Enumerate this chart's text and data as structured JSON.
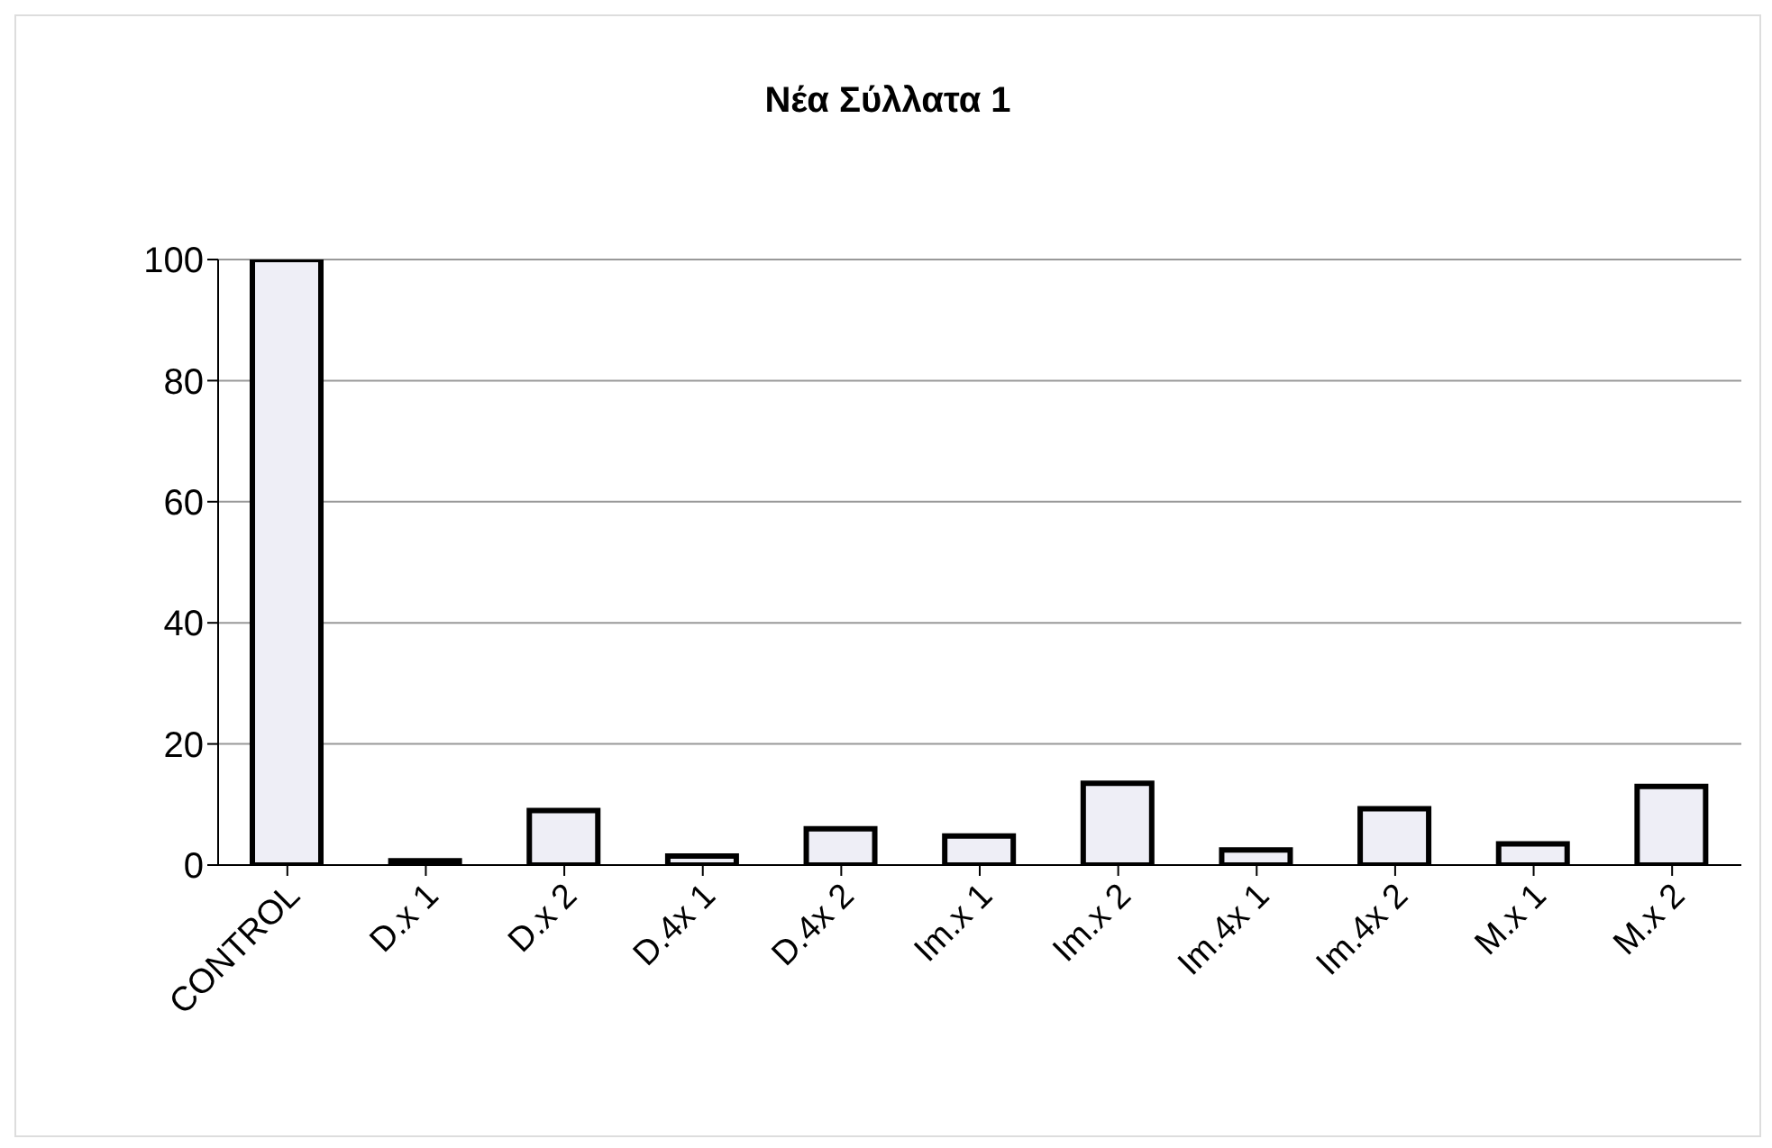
{
  "chart_data": {
    "type": "bar",
    "title": "Νέα Σύλλατα 1",
    "categories": [
      "CONTROL",
      "D.x 1",
      "D.x 2",
      "D.4x 1",
      "D.4x 2",
      "Im.x 1",
      "Im.x 2",
      "Im.4x 1",
      "Im.4x 2",
      "M.x 1",
      "M.x 2"
    ],
    "values": [
      100,
      0.7,
      9,
      1.5,
      6,
      4.8,
      13.5,
      2.5,
      9.3,
      3.5,
      13
    ],
    "color": "#eeeef6",
    "ylim": [
      0,
      100
    ],
    "yticks": [
      0,
      20,
      40,
      60,
      80,
      100
    ],
    "grid": "y"
  }
}
